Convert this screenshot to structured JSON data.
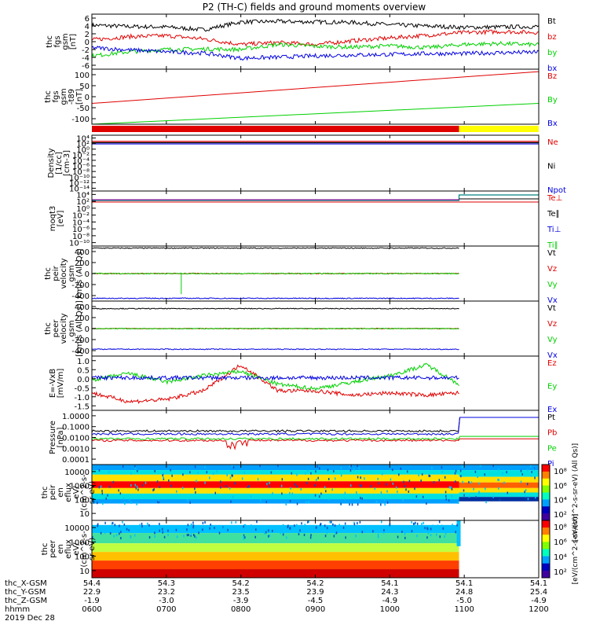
{
  "title": "P2 (TH-C) fields and ground moments overview",
  "colors": {
    "black": "#000000",
    "red": "#e00000",
    "green": "#00d000",
    "blue": "#0000e0",
    "yellow": "#ffff00"
  },
  "chart_data": [
    {
      "type": "line",
      "panel": "fgs_gsm",
      "ylabel": [
        "thc",
        "fgs",
        "gsm",
        "[nT]"
      ],
      "yticks": [
        "6",
        "4",
        "2",
        "0",
        "-2",
        "-4",
        "-6"
      ],
      "ylim": [
        -6,
        6
      ],
      "legend": [
        {
          "name": "Bt",
          "color": "#000000"
        },
        {
          "name": "bz",
          "color": "#e00000"
        },
        {
          "name": "by",
          "color": "#00d000"
        },
        {
          "name": "bx",
          "color": "#0000e0"
        }
      ],
      "x": [
        6,
        6.5,
        7,
        7.5,
        8,
        8.5,
        9,
        9.5,
        10,
        10.5,
        11,
        11.5,
        12
      ],
      "series": [
        {
          "name": "Bt",
          "values": [
            3.6,
            3.3,
            3.2,
            2.6,
            4.3,
            4.4,
            4.3,
            4.2,
            3.7,
            3.4,
            3.1,
            3.2,
            3.3
          ]
        },
        {
          "name": "bz",
          "values": [
            0.4,
            1.1,
            1.3,
            0.6,
            -0.6,
            -0.2,
            -0.6,
            0.2,
            0.8,
            1.4,
            2.0,
            2.2,
            2.0
          ]
        },
        {
          "name": "by",
          "values": [
            -3.1,
            -2.2,
            -1.7,
            -1.6,
            -1.7,
            -0.6,
            -1.0,
            -1.2,
            -0.9,
            -1.3,
            -0.6,
            -0.4,
            -0.7
          ]
        },
        {
          "name": "bx",
          "values": [
            -1.3,
            -1.8,
            -2.2,
            -2.5,
            -3.6,
            -3.4,
            -3.1,
            -2.9,
            -2.8,
            -2.6,
            -2.6,
            -2.4,
            -2.3
          ]
        }
      ]
    },
    {
      "type": "line",
      "panel": "fgs_gsm_igrf",
      "ylabel": [
        "thc",
        "fgs",
        "gsm",
        "-t89",
        "[nT]"
      ],
      "yticks": [
        "100",
        "50",
        "0",
        "-50",
        "-100"
      ],
      "ylim": [
        -125,
        100
      ],
      "legend": [
        {
          "name": "Bz",
          "color": "#e00000"
        },
        {
          "name": "By",
          "color": "#00d000"
        },
        {
          "name": "Bx",
          "color": "#0000e0"
        }
      ],
      "x": [
        6,
        12
      ],
      "series": [
        {
          "name": "Bz",
          "values": [
            -40,
            90
          ]
        },
        {
          "name": "By",
          "values": [
            -125,
            -40
          ]
        },
        {
          "name": "Bx",
          "values": [
            -125,
            -125
          ]
        }
      ]
    },
    {
      "type": "bar",
      "panel": "mode_bar",
      "segments": [
        {
          "x0": 6,
          "x1": 10.93,
          "color": "#e00000"
        },
        {
          "x0": 10.93,
          "x1": 12,
          "color": "#ffff00"
        }
      ]
    },
    {
      "type": "line",
      "panel": "density",
      "scale": "log",
      "ylabel": [
        "Density",
        "[1/cc]",
        "[cm-3]"
      ],
      "yticks": [
        "10⁴",
        "10²",
        "10⁰",
        "10⁻²",
        "10⁻⁴",
        "10⁻⁶",
        "10⁻⁸",
        "10⁻¹⁰",
        "10⁻¹²",
        "10⁻¹⁴"
      ],
      "ylim": [
        -14,
        4
      ],
      "legend": [
        {
          "name": "Ne",
          "color": "#e00000"
        },
        {
          "name": "Ni",
          "color": "#000000"
        },
        {
          "name": "Npot",
          "color": "#0000e0"
        }
      ]
    },
    {
      "type": "line",
      "panel": "temperature",
      "scale": "log",
      "ylabel": [
        "moqt3",
        "[eV]"
      ],
      "yticks": [
        "10⁴",
        "10²",
        "10⁰",
        "10⁻²",
        "10⁻⁴",
        "10⁻⁶",
        "10⁻⁸",
        "10⁻¹⁰"
      ],
      "ylim": [
        -10,
        4
      ],
      "legend": [
        {
          "name": "Te⊥",
          "color": "#e00000"
        },
        {
          "name": "Te∥",
          "color": "#000000"
        },
        {
          "name": "Ti⊥",
          "color": "#0000e0"
        },
        {
          "name": "Ti∥",
          "color": "#00d000"
        }
      ]
    },
    {
      "type": "line",
      "panel": "peir_velocity",
      "ylabel": [
        "thc",
        "peir",
        "velocity",
        "gsm",
        "km/s (All Qs)"
      ],
      "yticks": [
        "400",
        "200",
        "0",
        "-200",
        "-400"
      ],
      "ylim": [
        -400,
        400
      ],
      "legend": [
        {
          "name": "Vt",
          "color": "#000000"
        },
        {
          "name": "Vz",
          "color": "#e00000"
        },
        {
          "name": "Vy",
          "color": "#00d000"
        },
        {
          "name": "Vx",
          "color": "#0000e0"
        }
      ],
      "x": [
        6,
        10.93
      ],
      "series": [
        {
          "name": "Vt",
          "values": [
            370,
            370
          ]
        },
        {
          "name": "Vz",
          "values": [
            0,
            0
          ]
        },
        {
          "name": "Vy",
          "values": [
            0,
            0
          ]
        },
        {
          "name": "Vx",
          "values": [
            -360,
            -360
          ]
        }
      ]
    },
    {
      "type": "line",
      "panel": "peer_velocity",
      "ylabel": [
        "thc",
        "peer",
        "velocity",
        "gsm",
        "[km/s (All Qs)]"
      ],
      "yticks": [
        "400",
        "200",
        "0",
        "-200",
        "-400"
      ],
      "ylim": [
        -400,
        400
      ],
      "legend": [
        {
          "name": "Vt",
          "color": "#000000"
        },
        {
          "name": "Vz",
          "color": "#e00000"
        },
        {
          "name": "Vy",
          "color": "#00d000"
        },
        {
          "name": "Vx",
          "color": "#0000e0"
        }
      ],
      "x": [
        6,
        10.93
      ],
      "series": [
        {
          "name": "Vt",
          "values": [
            290,
            290
          ]
        },
        {
          "name": "Vz",
          "values": [
            0,
            0
          ]
        },
        {
          "name": "Vy",
          "values": [
            0,
            0
          ]
        },
        {
          "name": "Vx",
          "values": [
            -300,
            -300
          ]
        }
      ]
    },
    {
      "type": "line",
      "panel": "efield",
      "ylabel": [
        "E=-VxB",
        "[mV/m]"
      ],
      "yticks": [
        "1.0",
        "0.5",
        "0.0",
        "-0.5",
        "-1.0",
        "-1.5"
      ],
      "ylim": [
        -1.5,
        1.0
      ],
      "legend": [
        {
          "name": "Ez",
          "color": "#e00000"
        },
        {
          "name": "Ey",
          "color": "#00d000"
        },
        {
          "name": "Ex",
          "color": "#0000e0"
        }
      ],
      "x": [
        6,
        6.5,
        7,
        7.5,
        8,
        8.5,
        9,
        9.5,
        10,
        10.5,
        10.93
      ],
      "series": [
        {
          "name": "Ez",
          "values": [
            -0.7,
            -1.1,
            -1.0,
            -0.6,
            0.6,
            -0.6,
            -0.6,
            -0.8,
            -0.7,
            -0.8,
            -0.7
          ]
        },
        {
          "name": "Ey",
          "values": [
            -0.1,
            0.2,
            -0.2,
            0.1,
            0.3,
            -0.3,
            -0.5,
            -0.2,
            0.1,
            0.6,
            -0.3
          ]
        },
        {
          "name": "Ex",
          "values": [
            0,
            0,
            0,
            0,
            0,
            0,
            0,
            0,
            0,
            0,
            0
          ]
        }
      ]
    },
    {
      "type": "line",
      "panel": "pressure",
      "scale": "log",
      "ylabel": [
        "Pressure",
        "[nPa]"
      ],
      "yticks": [
        "1.0000",
        "0.1000",
        "0.0100",
        "0.0010",
        "0.0001"
      ],
      "ylim": [
        -4,
        0
      ],
      "legend": [
        {
          "name": "Pt",
          "color": "#000000"
        },
        {
          "name": "Pb",
          "color": "#e00000"
        },
        {
          "name": "Pe",
          "color": "#00d000"
        },
        {
          "name": "Pi",
          "color": "#0000e0"
        }
      ],
      "x": [
        6,
        8,
        10.9,
        10.95,
        12
      ],
      "series": [
        {
          "name": "Pt",
          "values": [
            0.03,
            0.03,
            0.03,
            0.3,
            0.3
          ]
        },
        {
          "name": "Pb",
          "values": [
            0.006,
            0.006,
            0.006,
            0.008,
            0.008
          ]
        },
        {
          "name": "Pe",
          "values": [
            0.008,
            0.008,
            0.008,
            0.012,
            0.012
          ]
        },
        {
          "name": "Pi",
          "values": [
            0.018,
            0.018,
            0.018,
            0.3,
            0.3
          ]
        }
      ]
    },
    {
      "type": "heatmap",
      "panel": "peir_eflux",
      "ylabel": [
        "thc",
        "peir",
        "en",
        "eflux",
        "eV/",
        "(cm^2-s-",
        "sr-eV)"
      ],
      "yticks": [
        "10000",
        "1000",
        "100",
        "10"
      ],
      "colorbar_ticks": [
        "10⁸",
        "10⁶",
        "10⁴",
        "10²"
      ],
      "colorbar_label": "[eV/(cm^2-s-sr-eV) (All Qs)]"
    },
    {
      "type": "heatmap",
      "panel": "peer_eflux",
      "ylabel": [
        "thc",
        "peer",
        "en",
        "eflux",
        "eV/",
        "(cm^2-s-",
        "sr-eV)"
      ],
      "yticks": [
        "10000",
        "1000",
        "100",
        "10"
      ],
      "colorbar_ticks": [
        "10⁸",
        "10⁶",
        "10⁴",
        "10²"
      ],
      "colorbar_label": "[eV/(cm^2-s-sr-eV)]"
    }
  ],
  "xaxis": {
    "row_labels": [
      "thc_X-GSM",
      "thc_Y-GSM",
      "thc_Z-GSM",
      "hhmm",
      "2019 Dec 28"
    ],
    "columns": [
      {
        "x": "54.4",
        "y": "22.9",
        "z": "-1.9",
        "t": "0600"
      },
      {
        "x": "54.3",
        "y": "23.2",
        "z": "-3.0",
        "t": "0700"
      },
      {
        "x": "54.2",
        "y": "23.5",
        "z": "-3.9",
        "t": "0800"
      },
      {
        "x": "54.2",
        "y": "23.9",
        "z": "-4.5",
        "t": "0900"
      },
      {
        "x": "54.1",
        "y": "24.3",
        "z": "-4.9",
        "t": "1000"
      },
      {
        "x": "54.1",
        "y": "24.8",
        "z": "-5.0",
        "t": "1100"
      },
      {
        "x": "54.1",
        "y": "25.4",
        "z": "-4.9",
        "t": "1200"
      }
    ]
  }
}
